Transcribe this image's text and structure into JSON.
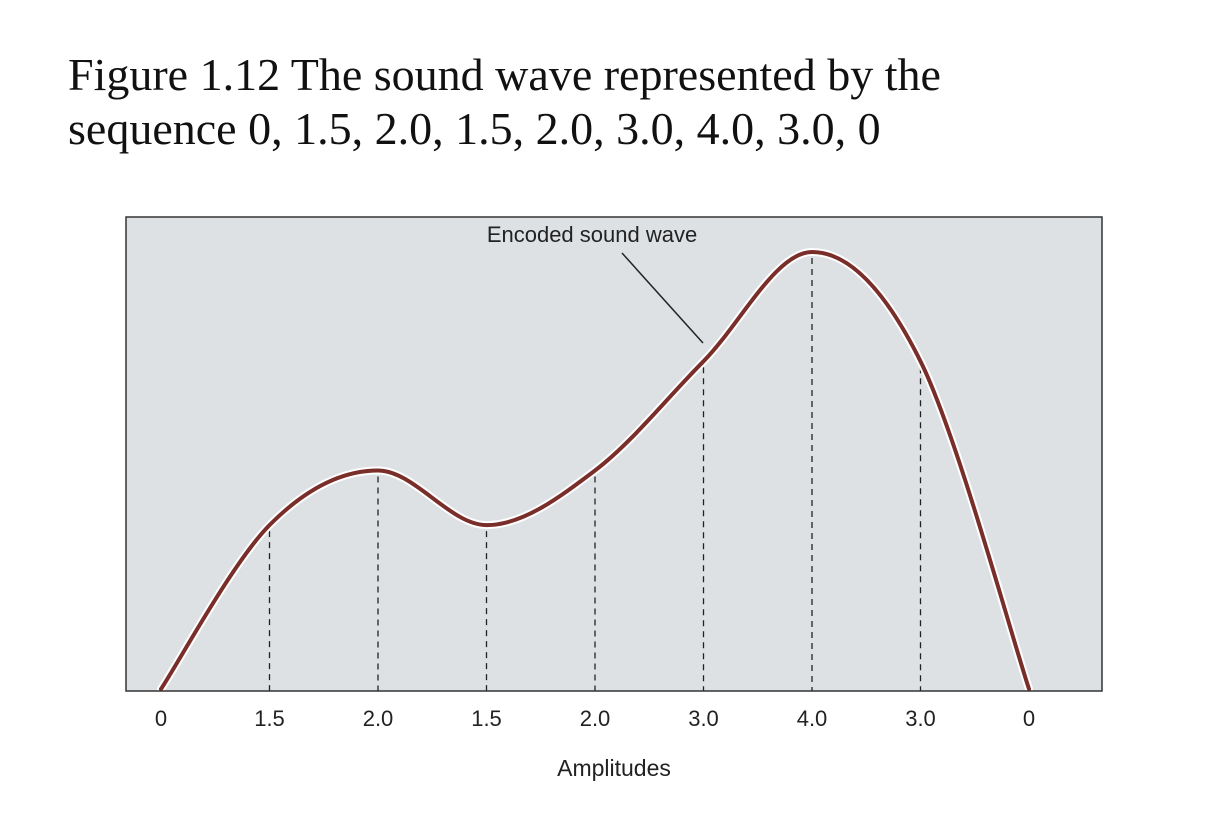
{
  "caption": {
    "line1": "Figure 1.12  The sound wave represented by the",
    "line2": "sequence 0, 1.5, 2.0, 1.5, 2.0, 3.0, 4.0, 3.0, 0"
  },
  "chart_data": {
    "type": "line",
    "categories": [
      "0",
      "1.5",
      "2.0",
      "1.5",
      "2.0",
      "3.0",
      "4.0",
      "3.0",
      "0"
    ],
    "values": [
      0,
      1.5,
      2.0,
      1.5,
      2.0,
      3.0,
      4.0,
      3.0,
      0
    ],
    "xlabel": "Amplitudes",
    "ylabel": "",
    "ylim": [
      0,
      4.3
    ],
    "grid": false,
    "drop_lines": true,
    "annotation": "Encoded sound wave",
    "colors": {
      "plot_background": "#dde1e4",
      "curve": "#7a2e2a",
      "curve_halo": "#ffffff",
      "frame": "#333333",
      "drop_line": "#222222"
    }
  }
}
